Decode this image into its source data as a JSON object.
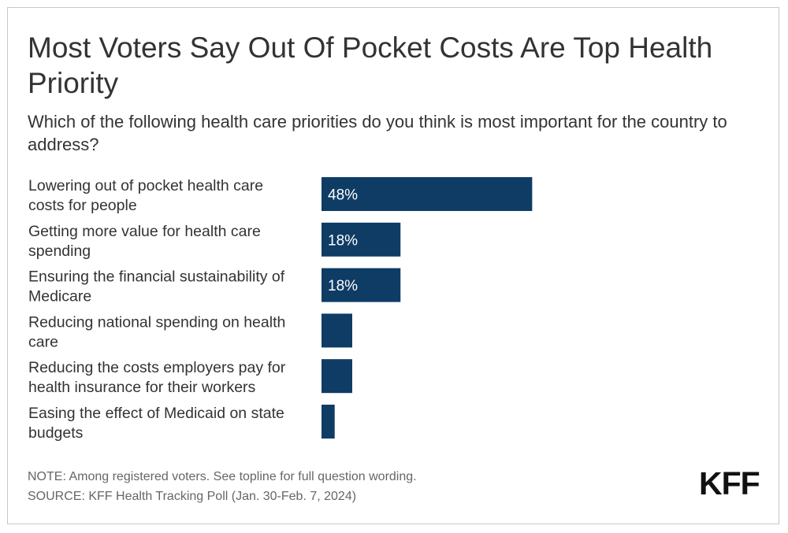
{
  "header": {
    "title": "Most Voters Say Out Of Pocket Costs Are Top Health Priority",
    "subtitle": "Which of the following health care priorities do you think is most important for the country to address?"
  },
  "footer": {
    "note": "NOTE: Among registered voters. See topline for full question wording.",
    "source": "SOURCE: KFF Health Tracking Poll (Jan. 30-Feb. 7, 2024)",
    "logo_text": "KFF"
  },
  "chart_data": {
    "type": "bar",
    "orientation": "horizontal",
    "categories": [
      [
        "Lowering out of pocket health care",
        "costs for people"
      ],
      [
        "Getting more value for health care",
        "spending"
      ],
      [
        "Ensuring the financial sustainability of",
        "Medicare"
      ],
      [
        "Reducing national spending on health",
        "care"
      ],
      [
        "Reducing the costs employers pay for",
        "health insurance for their workers"
      ],
      [
        "Easing the effect of Medicaid on state",
        "budgets"
      ]
    ],
    "values": [
      48,
      18,
      18,
      7,
      7,
      3
    ],
    "value_labels": [
      "48%",
      "18%",
      "18%",
      "",
      "",
      ""
    ],
    "xlim": [
      0,
      100
    ],
    "bar_color": "#0e3c65",
    "grid": false,
    "legend": false
  }
}
